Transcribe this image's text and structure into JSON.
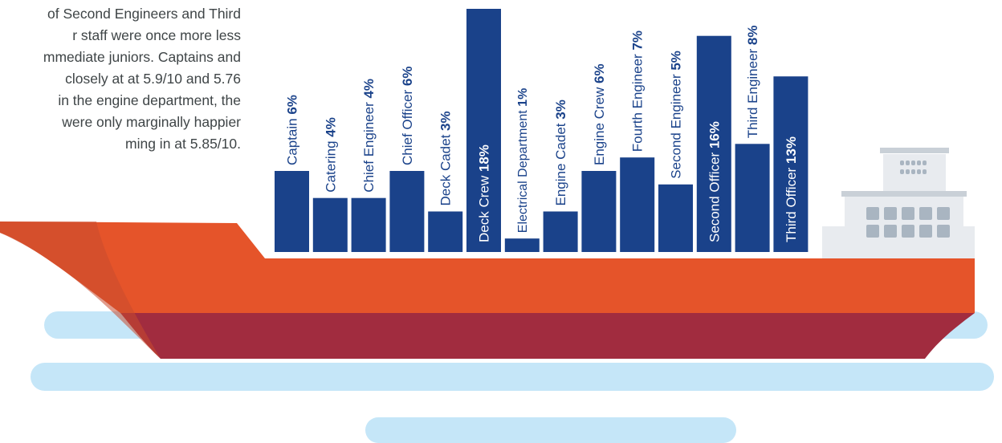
{
  "intro_text": {
    "lines": [
      "of Second Engineers and Third",
      "r staff were once more less",
      "mmediate juniors. Captains and",
      "closely at at 5.9/10 and 5.76",
      "in the engine department, the",
      "were only marginally happier",
      "ming in at 5.85/10."
    ]
  },
  "colors": {
    "bar": "#1a428a",
    "hull_top": "#e5542a",
    "hull_bottom": "#a12c3f",
    "bow_shadow": "#c94a2e",
    "water": "#c5e6f8",
    "superstructure": "#e8ebef",
    "superstructure_trim": "#c9d0d7",
    "window": "#a9b5c1",
    "label_text": "#1a428a"
  },
  "chart_data": {
    "type": "bar",
    "categories": [
      "Captain",
      "Catering",
      "Chief Engineer",
      "Chief Officer",
      "Deck Cadet",
      "Deck Crew",
      "Electrical Department",
      "Engine Cadet",
      "Engine Crew",
      "Fourth Engineer",
      "Second Engineer",
      "Second Officer",
      "Third Engineer",
      "Third Officer"
    ],
    "series": [
      {
        "values": [
          6,
          4,
          4,
          6,
          3,
          18,
          1,
          3,
          6,
          7,
          5,
          16,
          8,
          13
        ],
        "value_labels": [
          "6%",
          "4%",
          "4%",
          "6%",
          "3%",
          "18%",
          "1%",
          "3%",
          "6%",
          "7%",
          "5%",
          "16%",
          "8%",
          "13%"
        ]
      }
    ],
    "ylim": [
      0,
      18
    ],
    "grid": false,
    "legend": "none",
    "label_position": [
      "above",
      "above",
      "above",
      "above",
      "above",
      "inside",
      "above",
      "above",
      "above",
      "above",
      "above",
      "inside",
      "above",
      "inside"
    ]
  }
}
